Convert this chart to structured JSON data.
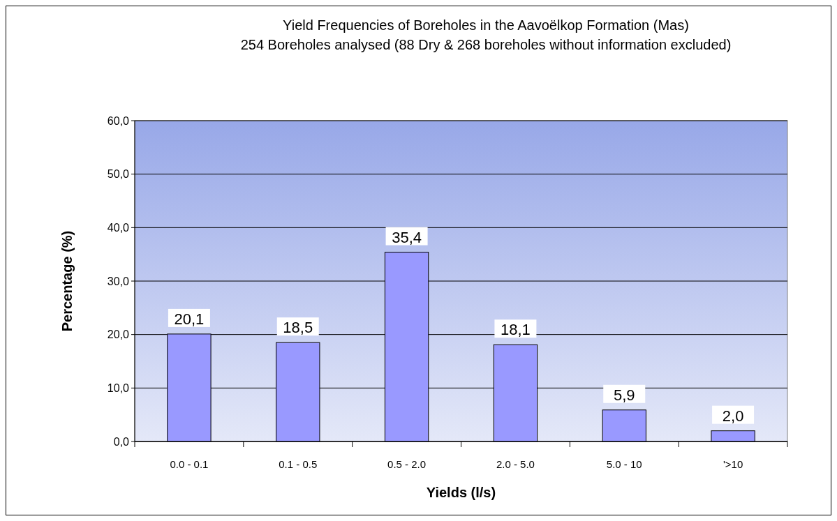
{
  "chart_data": {
    "type": "bar",
    "title": "Yield Frequencies of Boreholes in the Aavoëlkop Formation (Mas)",
    "subtitle": "254 Boreholes analysed (88 Dry & 268 boreholes without information excluded)",
    "xlabel": "Yields (l/s)",
    "ylabel": "Percentage (%)",
    "categories": [
      "0.0 - 0.1",
      "0.1 - 0.5",
      "0.5 - 2.0",
      "2.0 - 5.0",
      "5.0 - 10",
      "'>10"
    ],
    "values": [
      20.1,
      18.5,
      35.4,
      18.1,
      5.9,
      2.0
    ],
    "value_labels": [
      "20,1",
      "18,5",
      "35,4",
      "18,1",
      "5,9",
      "2,0"
    ],
    "color": "#9999ff",
    "ylim": [
      0,
      60
    ],
    "yticks": [
      {
        "value": 0,
        "label": "0,0"
      },
      {
        "value": 10,
        "label": "10,0"
      },
      {
        "value": 20,
        "label": "20,0"
      },
      {
        "value": 30,
        "label": "30,0"
      },
      {
        "value": 40,
        "label": "40,0"
      },
      {
        "value": 50,
        "label": "50,0"
      },
      {
        "value": 60,
        "label": "60,0"
      }
    ],
    "grid": "y"
  }
}
